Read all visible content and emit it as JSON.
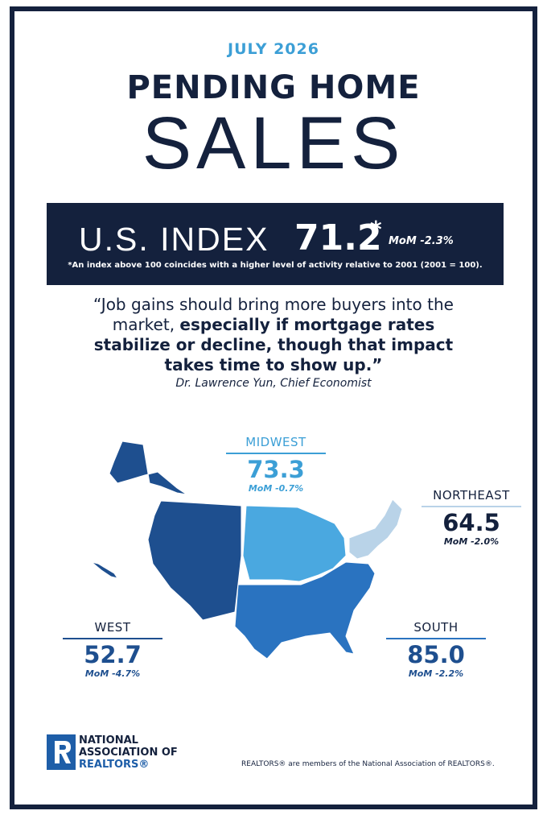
{
  "header": {
    "date": "JULY 2026",
    "title_line1": "PENDING HOME",
    "title_line2": "SALES"
  },
  "index": {
    "label": "U.S. INDEX",
    "value": "71.2",
    "asterisk": "*",
    "change": "MoM -2.3%",
    "footnote": "*An index above 100 coincides with a higher level of activity relative to 2001 (2001 = 100)."
  },
  "quote": {
    "text_regular": "“Job gains should bring more buyers into the market, ",
    "text_bold": "especially if mortgage rates stabilize or decline, though that impact takes time to show up.”",
    "attribution": "Dr. Lawrence Yun, Chief Economist"
  },
  "regions": [
    {
      "name": "MIDWEST",
      "value": "73.3",
      "change": "MoM -0.7%"
    },
    {
      "name": "NORTHEAST",
      "value": "64.5",
      "change": "MoM -2.0%"
    },
    {
      "name": "WEST",
      "value": "52.7",
      "change": "MoM -4.7%"
    },
    {
      "name": "SOUTH",
      "value": "85.0",
      "change": "MoM -2.2%"
    }
  ],
  "footer": {
    "logo_line1": "NATIONAL",
    "logo_line2": "ASSOCIATION OF",
    "logo_line3": "REALTORS®",
    "disclaimer": "REALTORS® are members of the National Association of REALTORS®."
  }
}
